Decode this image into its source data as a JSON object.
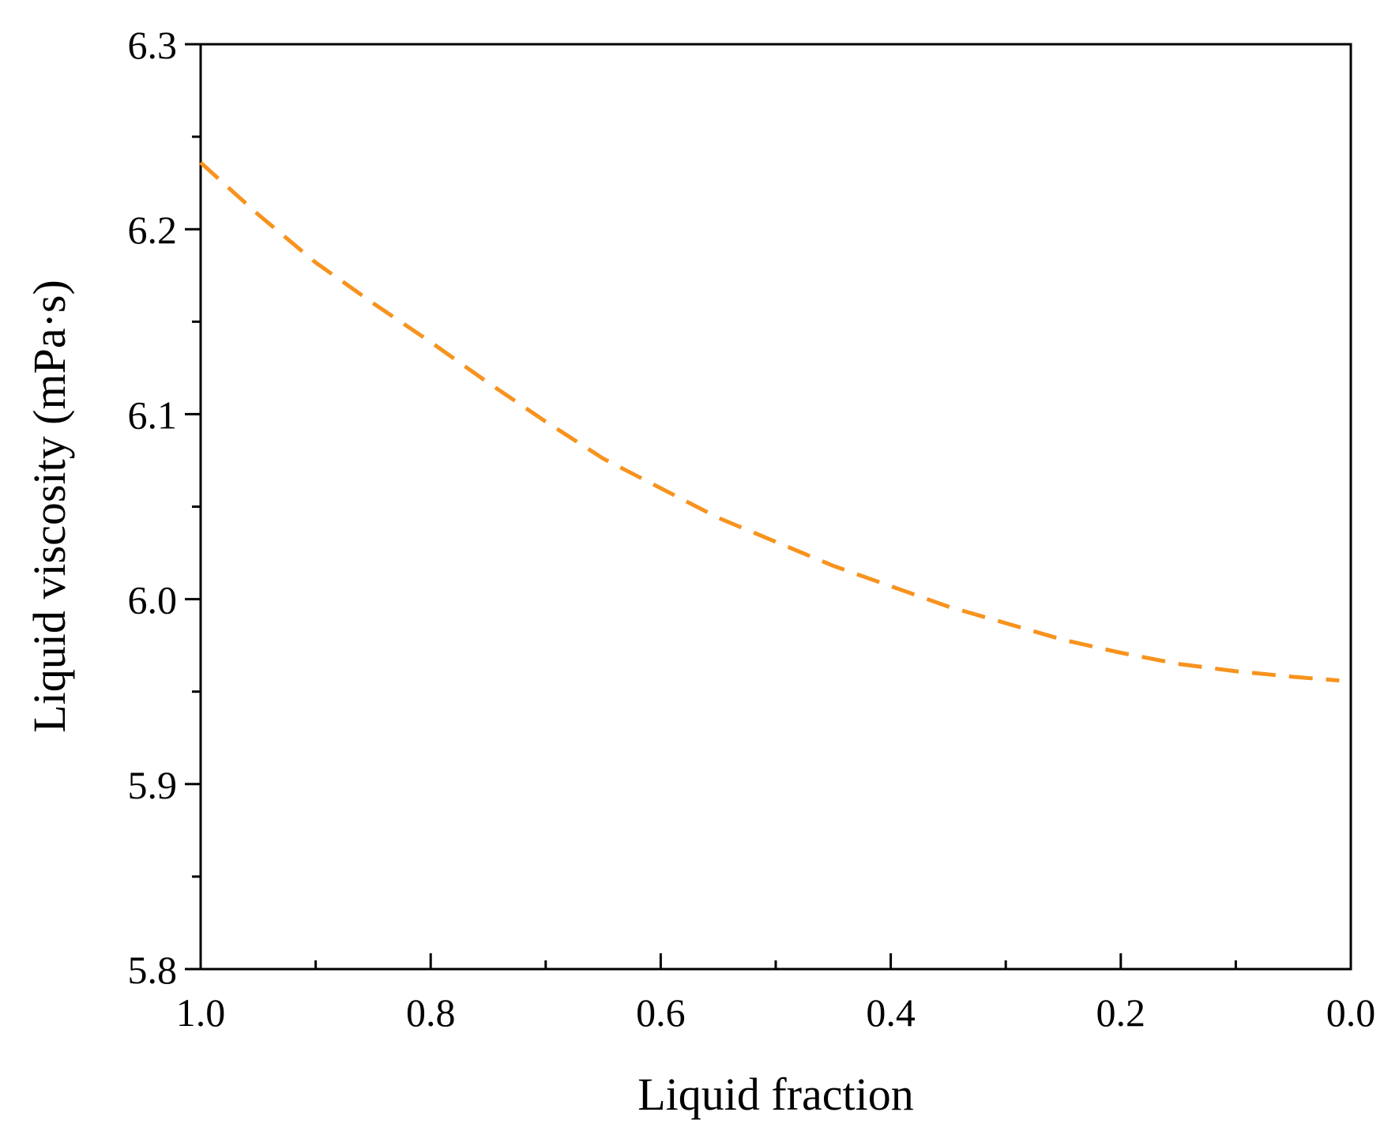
{
  "chart_data": {
    "type": "line",
    "title": "",
    "xlabel": "Liquid fraction",
    "ylabel": "Liquid viscosity (mPa·s)",
    "xlim": [
      1.0,
      0.0
    ],
    "ylim": [
      5.8,
      6.3
    ],
    "x_reversed": true,
    "x_ticks": [
      1.0,
      0.8,
      0.6,
      0.4,
      0.2,
      0.0
    ],
    "x_tick_labels": [
      "1.0",
      "0.8",
      "0.6",
      "0.4",
      "0.2",
      "0.0"
    ],
    "x_minor_ticks": [
      0.9,
      0.7,
      0.5,
      0.3,
      0.1
    ],
    "y_ticks": [
      5.8,
      5.9,
      6.0,
      6.1,
      6.2,
      6.3
    ],
    "y_tick_labels": [
      "5.8",
      "5.9",
      "6.0",
      "6.1",
      "6.2",
      "6.3"
    ],
    "y_minor_ticks": [
      5.85,
      5.95,
      6.05,
      6.15,
      6.25
    ],
    "grid": false,
    "series": [
      {
        "line_style": "dashed",
        "color": "#F7931E",
        "x": [
          1.0,
          0.95,
          0.9,
          0.85,
          0.8,
          0.75,
          0.7,
          0.65,
          0.6,
          0.55,
          0.5,
          0.45,
          0.4,
          0.35,
          0.3,
          0.25,
          0.2,
          0.15,
          0.1,
          0.05,
          0.01
        ],
        "y": [
          6.236,
          6.208,
          6.182,
          6.16,
          6.139,
          6.117,
          6.096,
          6.076,
          6.06,
          6.044,
          6.031,
          6.018,
          6.007,
          5.996,
          5.987,
          5.978,
          5.971,
          5.965,
          5.961,
          5.958,
          5.956
        ]
      }
    ]
  }
}
